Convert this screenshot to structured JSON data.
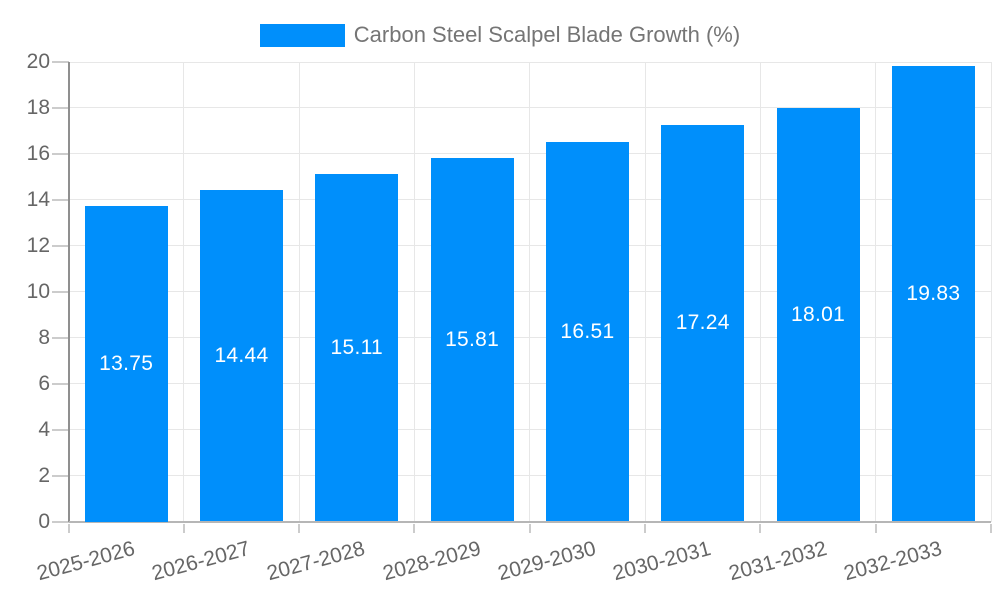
{
  "chart_data": {
    "type": "bar",
    "title": "Carbon Steel Scalpel Blade Growth (%)",
    "categories": [
      "2025-2026",
      "2026-2027",
      "2027-2028",
      "2028-2029",
      "2029-2030",
      "2030-2031",
      "2031-2032",
      "2032-2033"
    ],
    "series": [
      {
        "name": "Carbon Steel Scalpel Blade Growth (%)",
        "values": [
          13.75,
          14.44,
          15.11,
          15.81,
          16.51,
          17.24,
          18.01,
          19.83
        ]
      }
    ],
    "xlabel": "",
    "ylabel": "",
    "ylim": [
      0,
      20
    ],
    "ytick_step": 2,
    "yticks": [
      0,
      2,
      4,
      6,
      8,
      10,
      12,
      14,
      16,
      18,
      20
    ],
    "grid": true,
    "legend_position": "top",
    "value_labels_position": "inside-center"
  },
  "colors": {
    "bar": "#008FFB",
    "grid_line": "#e7e7e7",
    "axis_text": "#666666",
    "legend_text": "#757575",
    "y_axis_line": "#8f8f8f",
    "x_axis_line": "#b6b6b6",
    "tick_mark": "#cccccc",
    "value_label": "#ffffff",
    "background": "#ffffff"
  }
}
